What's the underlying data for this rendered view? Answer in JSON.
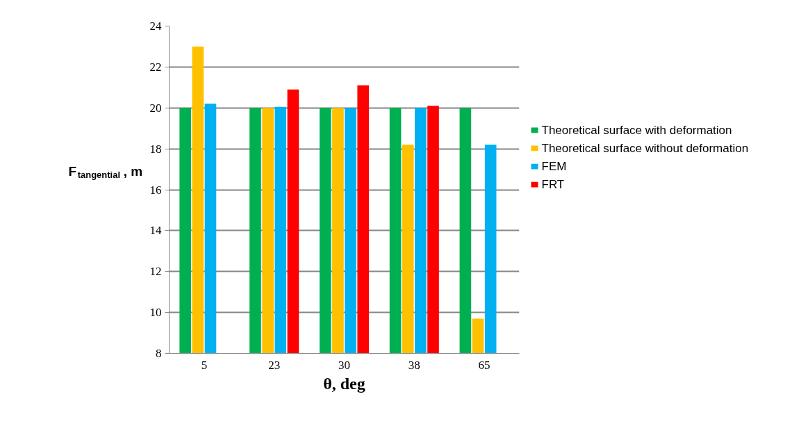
{
  "chart_data": {
    "type": "bar",
    "xlabel": "θ, deg",
    "ylabel": "F$_{tangential}$, m",
    "categories": [
      "5",
      "23",
      "30",
      "38",
      "65"
    ],
    "series": [
      {
        "name": "Theoretical surface with deformation",
        "color": "#00b050",
        "values": [
          20,
          20,
          20,
          20,
          20
        ]
      },
      {
        "name": "Theoretical surface without deformation",
        "color": "#ffc000",
        "values": [
          23,
          20,
          20,
          18.2,
          9.7
        ]
      },
      {
        "name": "FEM",
        "color": "#00b0f0",
        "values": [
          20.2,
          20.05,
          20,
          20,
          18.2
        ]
      },
      {
        "name": "FRT",
        "color": "#ff0000",
        "values": [
          8,
          20.9,
          21.1,
          20.1,
          8
        ]
      }
    ],
    "ylim": [
      8,
      24
    ],
    "yticks": [
      8,
      10,
      12,
      14,
      16,
      18,
      20,
      22,
      24
    ],
    "grid": "y",
    "legend": "right"
  }
}
